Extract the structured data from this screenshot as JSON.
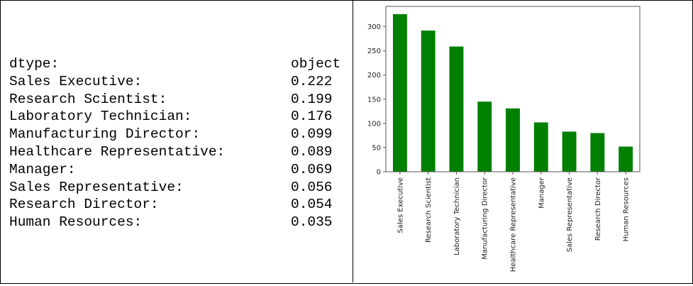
{
  "table": {
    "header": {
      "label": "dtype:",
      "value": "object"
    },
    "rows": [
      {
        "label": "Sales Executive:",
        "value": "0.222"
      },
      {
        "label": "Research Scientist:",
        "value": "0.199"
      },
      {
        "label": "Laboratory Technician:",
        "value": "0.176"
      },
      {
        "label": "Manufacturing Director:",
        "value": "0.099"
      },
      {
        "label": "Healthcare Representative:",
        "value": "0.089"
      },
      {
        "label": "Manager:",
        "value": "0.069"
      },
      {
        "label": "Sales Representative:",
        "value": "0.056"
      },
      {
        "label": "Research Director:",
        "value": "0.054"
      },
      {
        "label": "Human Resources:",
        "value": "0.035"
      }
    ]
  },
  "chart_data": {
    "type": "bar",
    "categories": [
      "Sales Executive",
      "Research Scientist",
      "Laboratory Technician",
      "Manufacturing Director",
      "Healthcare Representative",
      "Manager",
      "Sales Representative",
      "Research Director",
      "Human Resources"
    ],
    "values": [
      326,
      292,
      259,
      145,
      131,
      102,
      83,
      80,
      52
    ],
    "title": "",
    "xlabel": "",
    "ylabel": "",
    "ylim": [
      0,
      342
    ],
    "yticks": [
      0,
      50,
      100,
      150,
      200,
      250,
      300
    ],
    "bar_color": "#008000",
    "grid": false,
    "legend": "none"
  }
}
